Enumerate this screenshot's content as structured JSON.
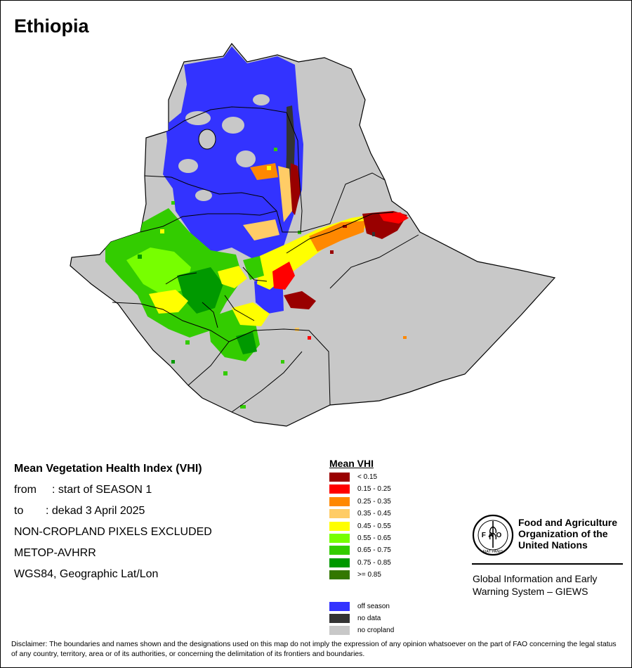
{
  "map_title": "Ethiopia",
  "info": {
    "heading": "Mean Vegetation Health Index (VHI)",
    "from_label": "from",
    "from_value": ": start of SEASON 1",
    "to_label": "to",
    "to_value": ": dekad 3 April 2025",
    "exclusion": "NON-CROPLAND PIXELS EXCLUDED",
    "sensor": "METOP-AVHRR",
    "projection": "WGS84, Geographic Lat/Lon"
  },
  "legend": {
    "title": "Mean VHI",
    "classes": [
      {
        "label": "< 0.15",
        "color": "#990000"
      },
      {
        "label": "0.15 - 0.25",
        "color": "#ff0000"
      },
      {
        "label": "0.25 - 0.35",
        "color": "#ff8800"
      },
      {
        "label": "0.35 - 0.45",
        "color": "#ffcc66"
      },
      {
        "label": "0.45 - 0.55",
        "color": "#ffff00"
      },
      {
        "label": "0.55 - 0.65",
        "color": "#77ff00"
      },
      {
        "label": "0.65 - 0.75",
        "color": "#33cc00"
      },
      {
        "label": "0.75 - 0.85",
        "color": "#009900"
      },
      {
        "label": ">= 0.85",
        "color": "#337700"
      }
    ],
    "other_classes": [
      {
        "label": "off season",
        "color": "#3333ff"
      },
      {
        "label": "no data",
        "color": "#333333"
      },
      {
        "label": "no cropland",
        "color": "#c8c8c8"
      }
    ]
  },
  "organization": {
    "name_line1": "Food and Agriculture",
    "name_line2": "Organization of the",
    "name_line3": "United Nations",
    "system_line1": "Global Information and Early",
    "system_line2": "Warning System – GIEWS",
    "logo_text": "FAO",
    "logo_motto": "FIAT PANIS",
    "logo_icon": "fao-wheat-logo-icon"
  },
  "disclaimer": "Disclaimer: The boundaries and names shown and the designations used on this map do not imply the expression of any opinion whatsoever on the part of FAO concerning the legal status of any country, territory, area or of its authorities, or concerning the delimitation of its frontiers and boundaries."
}
